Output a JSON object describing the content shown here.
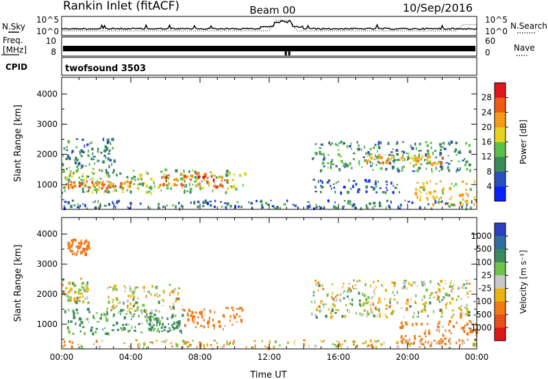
{
  "header": {
    "station": "Rankin Inlet (fitACF)",
    "beam": "Beam 00",
    "date": "10/Sep/2016"
  },
  "top_panels": {
    "nsky_label": "N.Sky",
    "nsky_ticks": [
      "10^5",
      "10^0"
    ],
    "nsearch_label": "N.Search",
    "nsearch_ticks": [
      "10^5",
      "10^0"
    ],
    "freq_label_1": "Freq.",
    "freq_label_2": "[MHz]",
    "freq_ticks": [
      "10",
      "8"
    ],
    "nave_label": "Nave",
    "nave_ticks": [
      "60",
      "0"
    ],
    "cpid_label": "CPID",
    "cpid_value": "twofsound 3503"
  },
  "colors": {
    "power": [
      "#0a21ff",
      "#2a4fc0",
      "#3b8a5a",
      "#5bbf4a",
      "#e6d21b",
      "#f79a1a",
      "#f05a14",
      "#e4141c"
    ],
    "velocity": [
      "#2c3fbf",
      "#2f6e9f",
      "#3b8a5a",
      "#6fc24b",
      "#c8c8c8",
      "#e8b30e",
      "#f07a16",
      "#e84e18",
      "#e01515"
    ]
  },
  "chart_data": [
    {
      "type": "heatmap",
      "title": "",
      "xlabel": "Time UT",
      "ylabel": "Slant Range [km]",
      "x_ticks": [
        "00:00",
        "04:00",
        "08:00",
        "12:00",
        "16:00",
        "20:00",
        "00:00"
      ],
      "xlim_hours": [
        0,
        24
      ],
      "y_ticks": [
        1000,
        2000,
        3000,
        4000
      ],
      "ylim": [
        180,
        4550
      ],
      "colorbar_label": "Power [dB]",
      "colorbar_ticks": [
        "4",
        "8",
        "12",
        "16",
        "20",
        "24",
        "28"
      ],
      "clim": [
        0,
        32
      ],
      "regions": [
        {
          "t0": 0.0,
          "t1": 10.6,
          "r0": 700,
          "r1": 1500,
          "value": 14
        },
        {
          "t0": 0.2,
          "t1": 4.0,
          "r0": 850,
          "r1": 1100,
          "value": 24
        },
        {
          "t0": 5.5,
          "t1": 9.8,
          "r0": 900,
          "r1": 1350,
          "value": 25
        },
        {
          "t0": 0.0,
          "t1": 3.0,
          "r0": 1400,
          "r1": 2500,
          "value": 9
        },
        {
          "t0": 14.4,
          "t1": 23.6,
          "r0": 1400,
          "r1": 2400,
          "value": 11
        },
        {
          "t0": 17.5,
          "t1": 22.0,
          "r0": 1650,
          "r1": 1950,
          "value": 21
        },
        {
          "t0": 20.4,
          "t1": 24.0,
          "r0": 300,
          "r1": 1100,
          "value": 19
        },
        {
          "t0": 14.5,
          "t1": 19.5,
          "r0": 700,
          "r1": 1150,
          "value": 6
        },
        {
          "t0": 0.0,
          "t1": 24.0,
          "r0": 180,
          "r1": 450,
          "value": 8
        }
      ]
    },
    {
      "type": "heatmap",
      "title": "",
      "xlabel": "Time UT",
      "ylabel": "Slant Range [km]",
      "x_ticks": [
        "00:00",
        "04:00",
        "08:00",
        "12:00",
        "16:00",
        "20:00",
        "00:00"
      ],
      "xlim_hours": [
        0,
        24
      ],
      "y_ticks": [
        1000,
        2000,
        3000,
        4000
      ],
      "ylim": [
        180,
        4550
      ],
      "colorbar_label": "Velocity [m s⁻¹]",
      "colorbar_ticks": [
        "1000",
        "500",
        "100",
        "25",
        "-25",
        "-100",
        "-500",
        "-1000"
      ],
      "clim": [
        -1200,
        1200
      ],
      "regions": [
        {
          "t0": 0.0,
          "t1": 5.5,
          "r0": 650,
          "r1": 1500,
          "value": 150
        },
        {
          "t0": 2.5,
          "t1": 7.0,
          "r0": 1400,
          "r1": 2300,
          "value": 0
        },
        {
          "t0": 5.0,
          "t1": 7.0,
          "r0": 700,
          "r1": 1300,
          "value": 200
        },
        {
          "t0": 7.0,
          "t1": 10.4,
          "r0": 800,
          "r1": 1550,
          "value": -300
        },
        {
          "t0": 0.0,
          "t1": 1.5,
          "r0": 1700,
          "r1": 2500,
          "value": 0
        },
        {
          "t0": 14.4,
          "t1": 23.6,
          "r0": 1200,
          "r1": 2450,
          "value": 0
        },
        {
          "t0": 19.5,
          "t1": 24.0,
          "r0": 300,
          "r1": 1100,
          "value": -250
        },
        {
          "t0": 0.3,
          "t1": 1.6,
          "r0": 3300,
          "r1": 3800,
          "value": -400
        },
        {
          "t0": 0.0,
          "t1": 24.0,
          "r0": 180,
          "r1": 450,
          "value": -50
        }
      ]
    }
  ]
}
